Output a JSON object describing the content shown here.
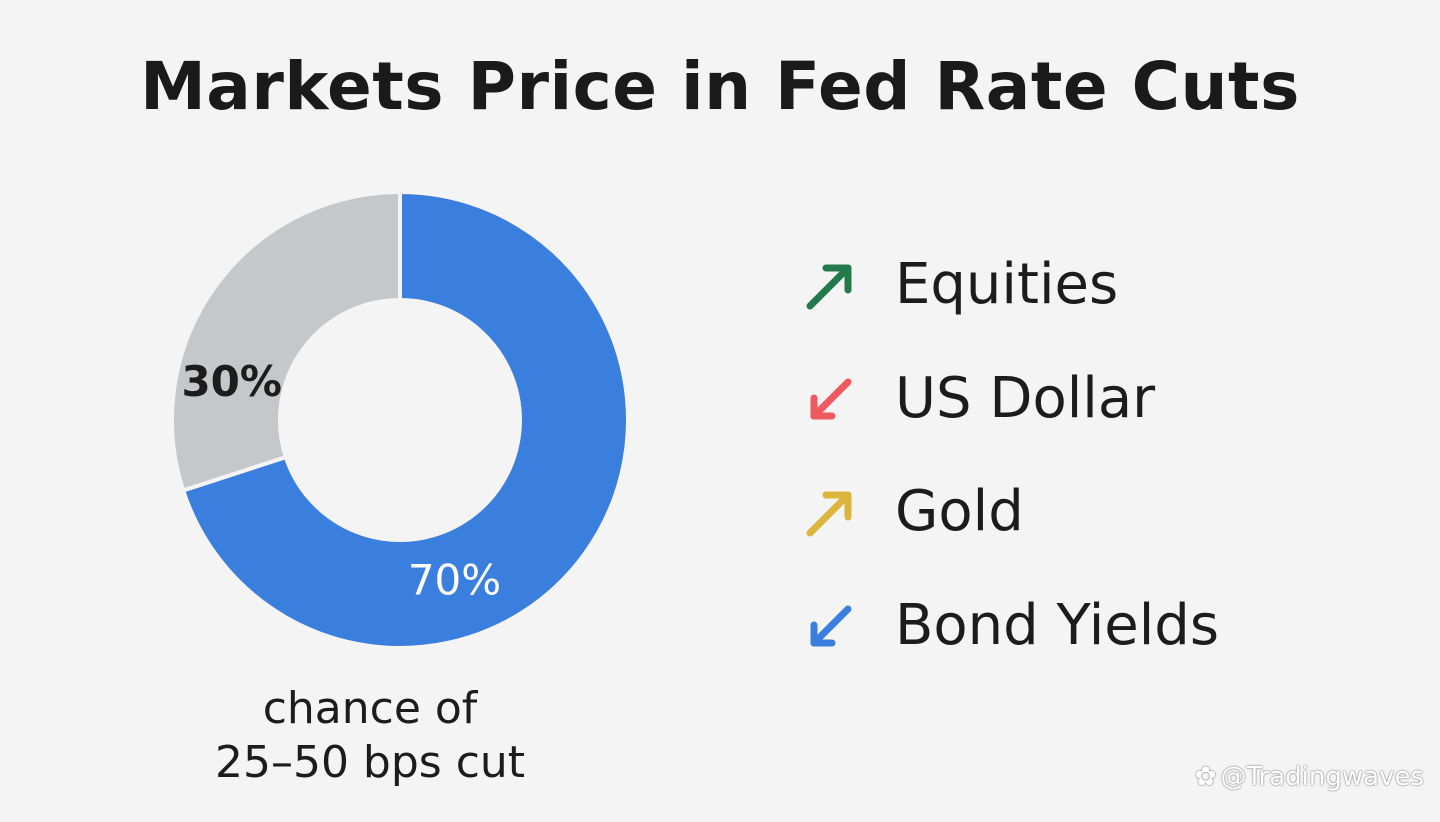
{
  "chart_data": {
    "type": "pie",
    "title": "Markets Price in Fed Rate Cuts",
    "slices": [
      {
        "label": "70%",
        "value": 70,
        "color": "#3b7fde"
      },
      {
        "label": "30%",
        "value": 30,
        "color": "#c6c7c8"
      }
    ],
    "caption_line1": "chance of",
    "caption_line2": "25–50 bps cut",
    "legend": [
      {
        "label": "Equities",
        "direction": "up",
        "icon": "arrow-up-right-icon",
        "color": "#237a4a"
      },
      {
        "label": "US Dollar",
        "direction": "down",
        "icon": "arrow-down-left-icon",
        "color": "#ee5a5f"
      },
      {
        "label": "Gold",
        "direction": "up",
        "icon": "arrow-up-right-icon",
        "color": "#dcb63c"
      },
      {
        "label": "Bond Yields",
        "direction": "down",
        "icon": "arrow-down-left-icon",
        "color": "#3b7fde"
      }
    ]
  },
  "watermark": {
    "text": "@Tradingwaves",
    "icon": "watermark-logo-icon"
  }
}
